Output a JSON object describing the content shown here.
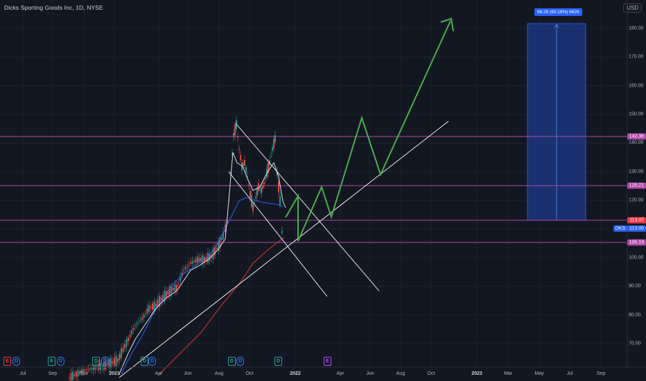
{
  "header": {
    "title": "Dicks Sporting Goods Inc, 1D, NYSE",
    "currency": "USD"
  },
  "x_axis": [
    {
      "label": "Jul",
      "x": 33
    },
    {
      "label": "Sep",
      "x": 76
    },
    {
      "label": "Nov",
      "x": 121
    },
    {
      "label": "2021",
      "x": 165,
      "bold": true
    },
    {
      "label": "Apr",
      "x": 229
    },
    {
      "label": "Jun",
      "x": 271
    },
    {
      "label": "Aug",
      "x": 316
    },
    {
      "label": "Oct",
      "x": 360
    },
    {
      "label": "2022",
      "x": 426,
      "bold": true
    },
    {
      "label": "Apr",
      "x": 491
    },
    {
      "label": "Jun",
      "x": 534
    },
    {
      "label": "Aug",
      "x": 578
    },
    {
      "label": "Oct",
      "x": 622
    },
    {
      "label": "2023",
      "x": 688,
      "bold": true
    },
    {
      "label": "Mar",
      "x": 733
    },
    {
      "label": "May",
      "x": 778
    },
    {
      "label": "Jul",
      "x": 822
    },
    {
      "label": "Sep",
      "x": 867
    }
  ],
  "y_axis": [
    "180.00",
    "170.00",
    "160.00",
    "150.00",
    "140.00",
    "130.00",
    "120.00",
    "110.00",
    "100.00",
    "90.00",
    "80.00",
    "70.00"
  ],
  "price_tags": {
    "level_1": "142.36",
    "level_2": "125.21",
    "level_3": "113.07",
    "last_price": "113.00",
    "symbol": "DKS",
    "level_4": "105.19"
  },
  "measure_label": "68.26 (60.18%) 6826",
  "events": [
    "E",
    "D",
    "E",
    "D",
    "D",
    "D",
    "D",
    "D",
    "D",
    "D",
    "D",
    "E"
  ],
  "colors": {
    "background": "#131722",
    "horizontal_lines": "#b04aa8",
    "projection": "#4caf50",
    "trendlines": "#ffffff",
    "ma_white": "#e0e3eb",
    "ma_blue": "#2962ff",
    "ma_red": "#e53935",
    "measure_fill": "#1e3a8a"
  }
}
